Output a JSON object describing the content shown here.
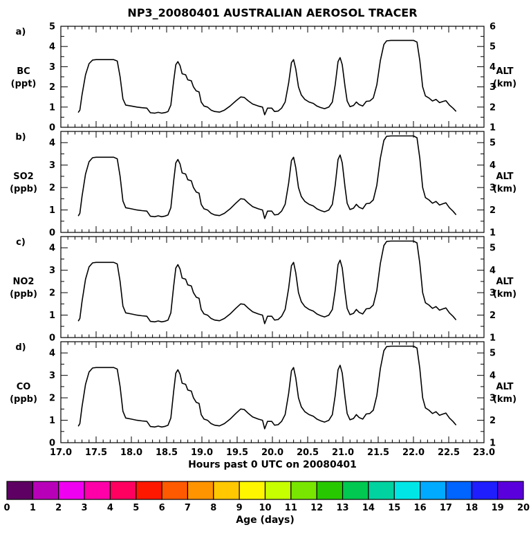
{
  "title": "NP3_20080401 AUSTRALIAN AEROSOL TRACER",
  "xlabel": "Hours past 0 UTC on 20080401",
  "colorbar": {
    "label": "Age (days)",
    "tick_labels": [
      "0",
      "1",
      "2",
      "3",
      "4",
      "5",
      "6",
      "7",
      "8",
      "9",
      "10",
      "11",
      "12",
      "13",
      "14",
      "15",
      "16",
      "17",
      "18",
      "19",
      "20"
    ],
    "colors": [
      "#5E0063",
      "#B800B8",
      "#F000F0",
      "#FF00A8",
      "#FF0060",
      "#FF1800",
      "#FF5A00",
      "#FF9400",
      "#FFC800",
      "#FFF600",
      "#C8FF00",
      "#78E600",
      "#28C800",
      "#00C850",
      "#00D2A0",
      "#00E6E6",
      "#00AAFF",
      "#0064FF",
      "#1E1EFF",
      "#5A00DC"
    ]
  },
  "chart_data": {
    "type": "line",
    "title": "NP3_20080401 AUSTRALIAN AEROSOL TRACER",
    "xlabel": "Hours past 0 UTC on 20080401",
    "xlim": [
      17.0,
      23.0
    ],
    "x_tick_labels": [
      "17.0",
      "17.5",
      "18.0",
      "18.5",
      "19.0",
      "19.5",
      "20.0",
      "20.5",
      "21.0",
      "21.5",
      "22.0",
      "22.5",
      "23.0"
    ],
    "grid": false,
    "line_color": "#000000",
    "series_shared_across_panels": true,
    "panels": [
      {
        "tag": "a)",
        "letter": "a",
        "species": "BC",
        "unit": "(ppt)",
        "ymin": 0,
        "ymax": 5,
        "ytick_labels": [
          "0",
          "1",
          "2",
          "3",
          "4",
          "5"
        ],
        "right_tick_labels": [
          "1",
          "2",
          "3",
          "4",
          "5",
          "6"
        ],
        "right_label": [
          "ALT",
          "(km)"
        ]
      },
      {
        "tag": "b)",
        "letter": "b",
        "species": "SO2",
        "unit": "(ppb)",
        "ymin": 0,
        "ymax": 4.5,
        "ytick_labels": [
          "0",
          "1",
          "2",
          "3",
          "4"
        ],
        "right_tick_labels": [
          "1",
          "2",
          "3",
          "4",
          "5"
        ],
        "right_label": [
          "ALT",
          "(km)"
        ]
      },
      {
        "tag": "c)",
        "letter": "c",
        "species": "NO2",
        "unit": "(ppb)",
        "ymin": 0,
        "ymax": 4.5,
        "ytick_labels": [
          "0",
          "1",
          "2",
          "3",
          "4"
        ],
        "right_tick_labels": [
          "1",
          "2",
          "3",
          "4",
          "5"
        ],
        "right_label": [
          "ALT",
          "(km)"
        ]
      },
      {
        "tag": "d)",
        "letter": "d",
        "species": "CO",
        "unit": "(ppb)",
        "ymin": 0,
        "ymax": 4.5,
        "ytick_labels": [
          "0",
          "1",
          "2",
          "3",
          "4"
        ],
        "right_tick_labels": [
          "1",
          "2",
          "3",
          "4",
          "5"
        ],
        "right_label": [
          "ALT",
          "(km)"
        ]
      }
    ],
    "series": [
      {
        "name": "flight-altitude-trace",
        "alt_km_equals": "y + 1",
        "points": [
          [
            17.25,
            0.75
          ],
          [
            17.27,
            0.85
          ],
          [
            17.3,
            1.6
          ],
          [
            17.35,
            2.6
          ],
          [
            17.4,
            3.15
          ],
          [
            17.45,
            3.33
          ],
          [
            17.5,
            3.35
          ],
          [
            17.75,
            3.35
          ],
          [
            17.8,
            3.28
          ],
          [
            17.84,
            2.5
          ],
          [
            17.88,
            1.4
          ],
          [
            17.92,
            1.1
          ],
          [
            18.0,
            1.05
          ],
          [
            18.08,
            1.0
          ],
          [
            18.15,
            0.97
          ],
          [
            18.22,
            0.95
          ],
          [
            18.27,
            0.72
          ],
          [
            18.33,
            0.7
          ],
          [
            18.38,
            0.74
          ],
          [
            18.43,
            0.7
          ],
          [
            18.48,
            0.73
          ],
          [
            18.52,
            0.78
          ],
          [
            18.56,
            1.1
          ],
          [
            18.6,
            2.3
          ],
          [
            18.63,
            3.1
          ],
          [
            18.66,
            3.25
          ],
          [
            18.69,
            3.05
          ],
          [
            18.72,
            2.65
          ],
          [
            18.77,
            2.6
          ],
          [
            18.8,
            2.35
          ],
          [
            18.85,
            2.3
          ],
          [
            18.88,
            2.0
          ],
          [
            18.92,
            1.8
          ],
          [
            18.96,
            1.75
          ],
          [
            18.99,
            1.25
          ],
          [
            19.03,
            1.05
          ],
          [
            19.08,
            1.0
          ],
          [
            19.13,
            0.85
          ],
          [
            19.18,
            0.78
          ],
          [
            19.25,
            0.75
          ],
          [
            19.32,
            0.85
          ],
          [
            19.4,
            1.05
          ],
          [
            19.48,
            1.3
          ],
          [
            19.55,
            1.5
          ],
          [
            19.6,
            1.48
          ],
          [
            19.66,
            1.3
          ],
          [
            19.72,
            1.15
          ],
          [
            19.8,
            1.05
          ],
          [
            19.86,
            1.0
          ],
          [
            19.89,
            0.62
          ],
          [
            19.93,
            0.95
          ],
          [
            19.99,
            0.95
          ],
          [
            20.03,
            0.78
          ],
          [
            20.08,
            0.8
          ],
          [
            20.13,
            0.95
          ],
          [
            20.18,
            1.25
          ],
          [
            20.23,
            2.2
          ],
          [
            20.27,
            3.2
          ],
          [
            20.3,
            3.35
          ],
          [
            20.33,
            2.9
          ],
          [
            20.37,
            2.0
          ],
          [
            20.41,
            1.6
          ],
          [
            20.46,
            1.38
          ],
          [
            20.52,
            1.25
          ],
          [
            20.58,
            1.18
          ],
          [
            20.63,
            1.05
          ],
          [
            20.68,
            0.98
          ],
          [
            20.74,
            0.92
          ],
          [
            20.8,
            1.0
          ],
          [
            20.85,
            1.25
          ],
          [
            20.89,
            2.1
          ],
          [
            20.93,
            3.25
          ],
          [
            20.96,
            3.45
          ],
          [
            20.99,
            3.1
          ],
          [
            21.03,
            2.0
          ],
          [
            21.06,
            1.3
          ],
          [
            21.1,
            1.02
          ],
          [
            21.15,
            1.08
          ],
          [
            21.19,
            1.25
          ],
          [
            21.23,
            1.12
          ],
          [
            21.28,
            1.05
          ],
          [
            21.33,
            1.28
          ],
          [
            21.38,
            1.3
          ],
          [
            21.43,
            1.45
          ],
          [
            21.48,
            2.1
          ],
          [
            21.53,
            3.3
          ],
          [
            21.58,
            4.1
          ],
          [
            21.62,
            4.28
          ],
          [
            21.68,
            4.3
          ],
          [
            22.0,
            4.3
          ],
          [
            22.05,
            4.22
          ],
          [
            22.09,
            3.3
          ],
          [
            22.13,
            2.0
          ],
          [
            22.17,
            1.55
          ],
          [
            22.22,
            1.45
          ],
          [
            22.27,
            1.3
          ],
          [
            22.32,
            1.38
          ],
          [
            22.37,
            1.22
          ],
          [
            22.42,
            1.28
          ],
          [
            22.46,
            1.32
          ],
          [
            22.51,
            1.1
          ],
          [
            22.56,
            0.95
          ],
          [
            22.6,
            0.8
          ]
        ]
      }
    ]
  }
}
